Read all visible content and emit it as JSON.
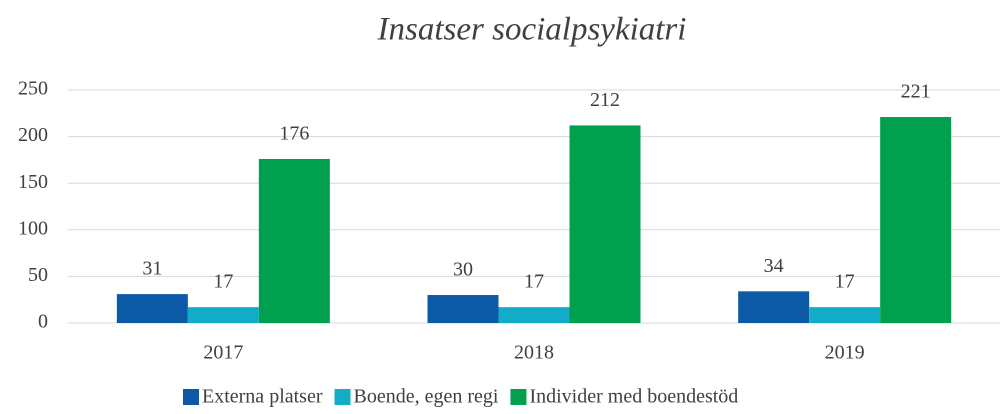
{
  "chart_data": {
    "type": "bar",
    "title": "Insatser socialpsykiatri",
    "categories": [
      "2017",
      "2018",
      "2019"
    ],
    "series": [
      {
        "name": "Externa platser",
        "color": "#0c5aa6",
        "values": [
          31,
          30,
          34
        ]
      },
      {
        "name": "Boende, egen regi",
        "color": "#12acc7",
        "values": [
          17,
          17,
          17
        ]
      },
      {
        "name": "Individer med boendestöd",
        "color": "#00a04f",
        "values": [
          176,
          212,
          221
        ]
      }
    ],
    "ylim": [
      0,
      250
    ],
    "yticks": [
      0,
      50,
      100,
      150,
      200,
      250
    ],
    "grid": true,
    "legend": "bottom"
  }
}
